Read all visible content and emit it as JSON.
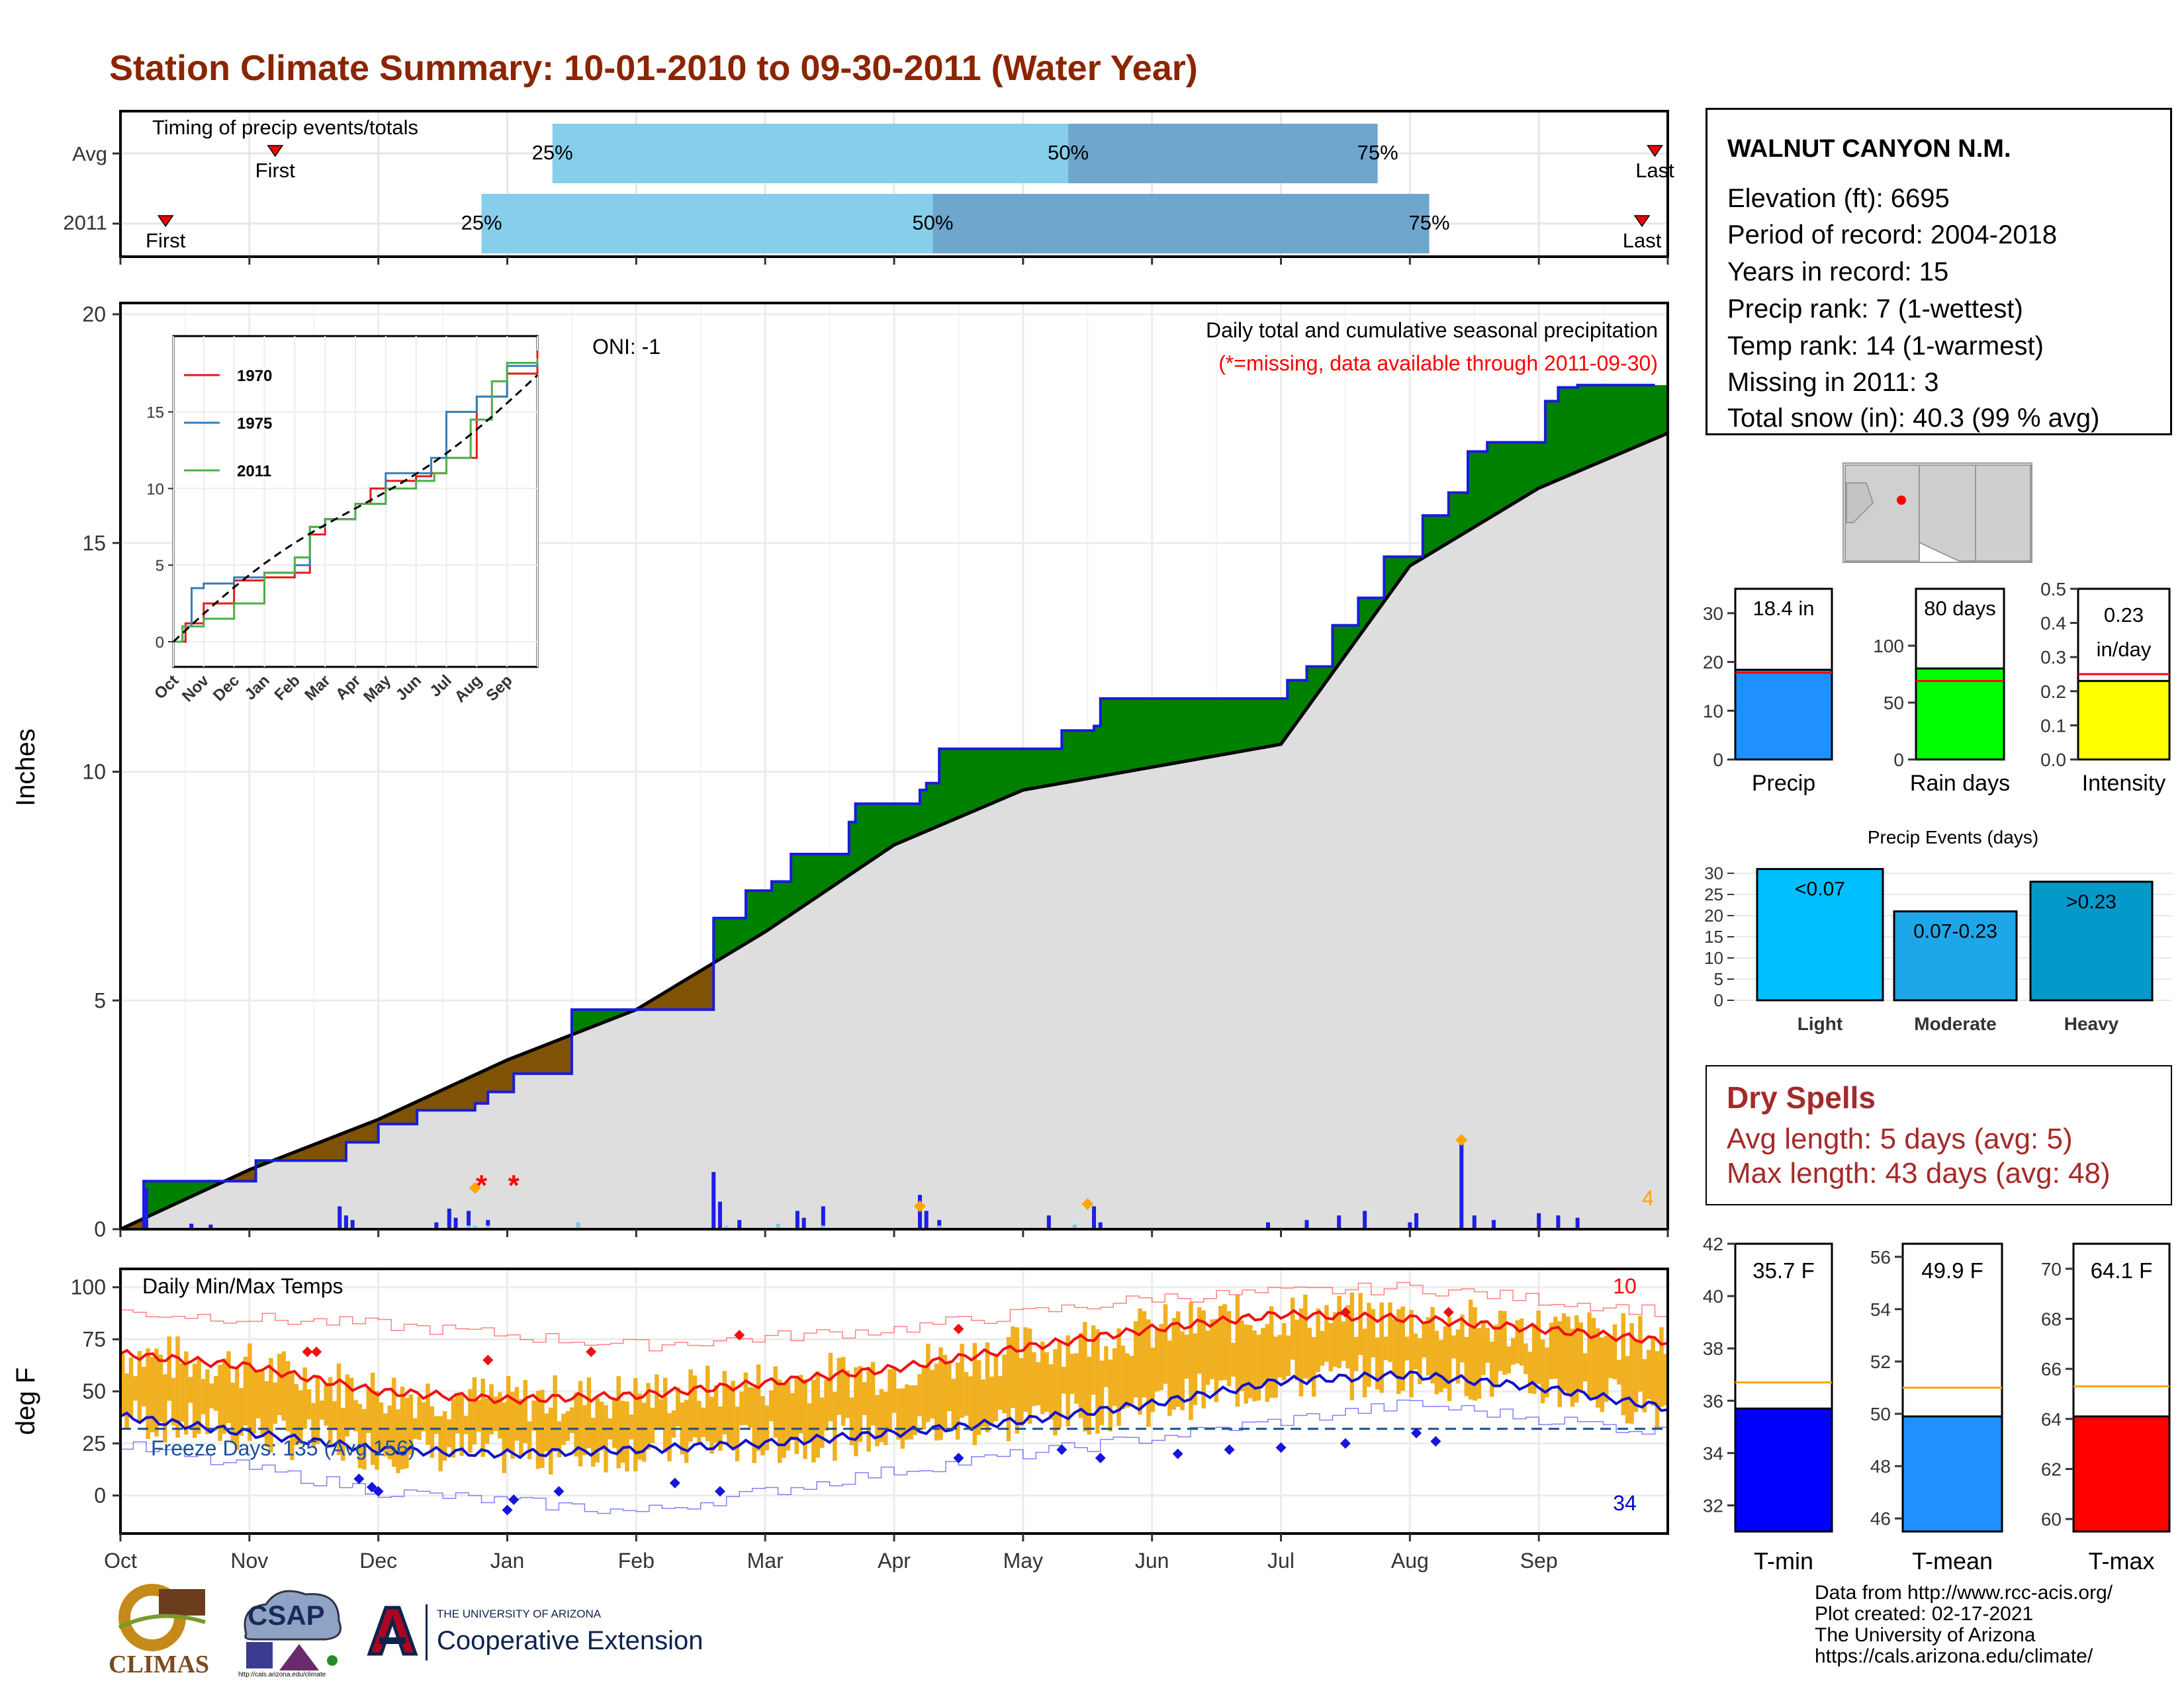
{
  "title": "Station Climate Summary: 10-01-2010 to 09-30-2011 (Water Year)",
  "colors": {
    "title": "#8b2500",
    "gray_area": "#dedede",
    "surplus": "#008000",
    "deficit": "#7f5206",
    "precip_bar": "#1e1ee6",
    "temp_bar": "#f0b020",
    "tmax_mean": "#ee1111",
    "tmin_mean": "#1111cc",
    "light_blue": "#87ceeb",
    "mid_blue": "#6fa6cd"
  },
  "timing": {
    "label": "Timing of precip events/totals",
    "rows": [
      {
        "name": "Avg",
        "first_label": "First",
        "last_label": "Last",
        "first": 1.2,
        "p25": 3.35,
        "p50": 7.35,
        "p75": 9.75,
        "last": 11.9
      },
      {
        "name": "2011",
        "first_label": "First",
        "last_label": "Last",
        "first": 0.35,
        "p25": 2.8,
        "p50": 6.3,
        "p75": 10.15,
        "last": 11.8
      }
    ],
    "pct_labels": [
      "25%",
      "50%",
      "75%"
    ]
  },
  "precip_panel": {
    "ylabel": "Inches",
    "yticks": [
      0,
      5,
      10,
      15,
      20
    ],
    "ymax": 20,
    "annot_main": "Daily total and cumulative seasonal precipitation",
    "annot_missing": "(*=missing, data available through 2011-09-30)",
    "oni": "ONI: -1",
    "count_label": "4"
  },
  "chart_data": [
    {
      "type": "area",
      "title": "Daily total and cumulative seasonal precipitation",
      "ylabel": "Inches",
      "ylim": [
        0,
        20
      ],
      "series": [
        {
          "name": "2011",
          "x_month": [
            0,
            0.18,
            0.55,
            1.05,
            1.6,
            1.75,
            2.0,
            2.3,
            2.75,
            2.85,
            3.05,
            3.5,
            3.75,
            4.55,
            4.6,
            4.85,
            5.05,
            5.2,
            5.65,
            5.7,
            6.2,
            6.25,
            6.35,
            7.2,
            7.3,
            7.55,
            7.6,
            8.9,
            9.05,
            9.2,
            9.4,
            9.6,
            9.8,
            10.1,
            10.3,
            10.45,
            10.6,
            11.0,
            11.05,
            11.15,
            11.3,
            11.9
          ],
          "y": [
            0,
            1.05,
            1.05,
            1.5,
            1.5,
            1.9,
            2.3,
            2.6,
            2.75,
            3.0,
            3.4,
            4.8,
            4.8,
            4.8,
            6.8,
            7.4,
            7.6,
            8.2,
            8.9,
            9.3,
            9.6,
            9.75,
            10.5,
            10.5,
            10.9,
            11.0,
            11.6,
            11.6,
            12.0,
            12.3,
            13.2,
            13.8,
            14.7,
            15.6,
            16.1,
            17.0,
            17.2,
            17.2,
            18.1,
            18.4,
            18.45,
            18.45
          ]
        },
        {
          "name": "Avg cumulative",
          "x_month": [
            0,
            1,
            2,
            3,
            4,
            5,
            6,
            7,
            8,
            9,
            10,
            11,
            12
          ],
          "y": [
            0,
            1.3,
            2.4,
            3.7,
            4.8,
            6.5,
            8.4,
            9.6,
            10.1,
            10.6,
            14.5,
            16.2,
            17.4
          ]
        }
      ],
      "daily_precip": [
        [
          0.2,
          0.9
        ],
        [
          0.55,
          0.12
        ],
        [
          0.7,
          0.1
        ],
        [
          1.7,
          0.5
        ],
        [
          1.75,
          0.3
        ],
        [
          1.8,
          0.2
        ],
        [
          2.45,
          0.15
        ],
        [
          2.55,
          0.45
        ],
        [
          2.6,
          0.25
        ],
        [
          2.7,
          0.4
        ],
        [
          2.85,
          0.2
        ],
        [
          4.6,
          1.25
        ],
        [
          4.65,
          0.6
        ],
        [
          4.8,
          0.2
        ],
        [
          5.25,
          0.4
        ],
        [
          5.3,
          0.25
        ],
        [
          5.45,
          0.5
        ],
        [
          6.2,
          0.75
        ],
        [
          6.25,
          0.4
        ],
        [
          6.35,
          0.2
        ],
        [
          7.2,
          0.3
        ],
        [
          7.55,
          0.5
        ],
        [
          7.6,
          0.15
        ],
        [
          8.9,
          0.15
        ],
        [
          9.2,
          0.2
        ],
        [
          9.45,
          0.3
        ],
        [
          9.65,
          0.4
        ],
        [
          10.0,
          0.15
        ],
        [
          10.05,
          0.35
        ],
        [
          10.4,
          2.0
        ],
        [
          10.5,
          0.3
        ],
        [
          10.65,
          0.2
        ],
        [
          11.0,
          0.35
        ],
        [
          11.15,
          0.3
        ],
        [
          11.3,
          0.25
        ]
      ]
    },
    {
      "type": "line",
      "title": "Daily Min/Max Temps",
      "ylabel": "deg F",
      "ylim": [
        -15,
        105
      ],
      "yticks": [
        0,
        25,
        50,
        75,
        100
      ],
      "series": [
        {
          "name": "Avg Tmax",
          "x_month": [
            0,
            1,
            2,
            3,
            4,
            5,
            6,
            7,
            8,
            9,
            10,
            11,
            12
          ],
          "y": [
            68,
            62,
            50,
            46,
            48,
            54,
            61,
            71,
            80,
            87,
            85,
            80,
            74
          ]
        },
        {
          "name": "Avg Tmin",
          "x_month": [
            0,
            1,
            2,
            3,
            4,
            5,
            6,
            7,
            8,
            9,
            10,
            11,
            12
          ],
          "y": [
            38,
            30,
            22,
            20,
            22,
            25,
            30,
            36,
            44,
            55,
            58,
            52,
            42
          ]
        },
        {
          "name": "Record Tmax",
          "x_month": [
            0,
            2,
            4,
            6,
            8,
            10,
            12
          ],
          "y": [
            88,
            82,
            72,
            80,
            95,
            100,
            88
          ]
        },
        {
          "name": "Record Tmin",
          "x_month": [
            0,
            2,
            4,
            6,
            8,
            10,
            12
          ],
          "y": [
            24,
            2,
            -8,
            12,
            28,
            44,
            30
          ]
        }
      ],
      "freeze_line": 32
    },
    {
      "type": "bar",
      "title": "Precip",
      "categories": [
        "Precip",
        "Rain days",
        "Intensity"
      ],
      "values": [
        18.4,
        80,
        0.23
      ],
      "averages": [
        17.8,
        69,
        0.25
      ],
      "ylims": [
        [
          0,
          35
        ],
        [
          0,
          150
        ],
        [
          0,
          0.5
        ]
      ]
    },
    {
      "type": "bar",
      "title": "Precip Events (days)",
      "categories": [
        "Light",
        "Moderate",
        "Heavy"
      ],
      "values": [
        31,
        21,
        28
      ],
      "ylim": [
        0,
        30
      ]
    },
    {
      "type": "bar",
      "categories": [
        "T-min",
        "T-mean",
        "T-max"
      ],
      "values": [
        35.7,
        49.9,
        64.1
      ],
      "averages": [
        36.7,
        51.0,
        65.3
      ],
      "ylims": [
        [
          31,
          42
        ],
        [
          45.5,
          56.5
        ],
        [
          59.5,
          71
        ]
      ]
    }
  ],
  "inset": {
    "legend": [
      "1970",
      "1975",
      "2011"
    ],
    "legend_colors": [
      "#e41a1c",
      "#377eb8",
      "#4daf4a"
    ],
    "yticks": [
      "0",
      "5",
      "10",
      "15"
    ],
    "months": [
      "Oct",
      "Nov",
      "Dec",
      "Jan",
      "Feb",
      "Mar",
      "Apr",
      "May",
      "Jun",
      "Jul",
      "Aug",
      "Sep"
    ]
  },
  "temp_panel": {
    "title": "Daily Min/Max Temps",
    "ylabel": "deg F",
    "freeze_label": "Freeze Days: 135 (Avg 156)",
    "top_count": "10",
    "bottom_count": "34",
    "yticks": [
      "0",
      "25",
      "50",
      "75",
      "100"
    ]
  },
  "months": [
    "Oct",
    "Nov",
    "Dec",
    "Jan",
    "Feb",
    "Mar",
    "Apr",
    "May",
    "Jun",
    "Jul",
    "Aug",
    "Sep"
  ],
  "station": {
    "name": "WALNUT CANYON N.M.",
    "lines": [
      "Elevation (ft): 6695",
      "Period of record: 2004-2018",
      "Years in record: 15",
      "Precip rank: 7 (1-wettest)",
      "Temp rank: 14 (1-warmest)",
      "Missing in 2011: 3",
      "Total snow (in): 40.3 (99 % avg)"
    ]
  },
  "mini_bars": [
    {
      "label": "Precip",
      "value_text": "18.4 in",
      "yticks": [
        "0",
        "10",
        "20",
        "30"
      ],
      "color": "#1e90ff"
    },
    {
      "label": "Rain days",
      "value_text": "80 days",
      "yticks": [
        "0",
        "50",
        "100"
      ],
      "color": "#00ff00"
    },
    {
      "label": "Intensity",
      "value_text1": "0.23",
      "value_text2": "in/day",
      "yticks": [
        "0.0",
        "0.1",
        "0.2",
        "0.3",
        "0.4",
        "0.5"
      ],
      "color": "#ffff00"
    }
  ],
  "events": {
    "title": "Precip Events (days)",
    "yticks": [
      "0",
      "5",
      "10",
      "15",
      "20",
      "25",
      "30"
    ],
    "bars": [
      {
        "label": "Light",
        "bin": "<0.07",
        "color": "#00bfff"
      },
      {
        "label": "Moderate",
        "bin": "0.07-0.23",
        "color": "#1ea7e8"
      },
      {
        "label": "Heavy",
        "bin": ">0.23",
        "color": "#0599c9"
      }
    ]
  },
  "dry_spells": {
    "title": "Dry Spells",
    "avg": "Avg length: 5 days (avg: 5)",
    "max": "Max length: 43 days (avg: 48)"
  },
  "temp_bars": [
    {
      "label": "T-min",
      "value_text": "35.7 F",
      "yticks": [
        "32",
        "34",
        "36",
        "38",
        "40",
        "42"
      ],
      "color": "#0000ff"
    },
    {
      "label": "T-mean",
      "value_text": "49.9 F",
      "yticks": [
        "46",
        "48",
        "50",
        "52",
        "54",
        "56"
      ],
      "color": "#1e90ff"
    },
    {
      "label": "T-max",
      "value_text": "64.1 F",
      "yticks": [
        "60",
        "62",
        "64",
        "66",
        "68",
        "70"
      ],
      "color": "#ff0000"
    }
  ],
  "credits": [
    "Data from http://www.rcc-acis.org/",
    "Plot created: 02-17-2021",
    "The University of Arizona",
    "https://cals.arizona.edu/climate/"
  ],
  "logos": {
    "climas": "CLIMAS",
    "csap": "CSAP",
    "csap_url": "http://cals.arizona.edu/climate",
    "ua_small": "THE UNIVERSITY OF ARIZONA",
    "ua_big": "Cooperative Extension"
  }
}
